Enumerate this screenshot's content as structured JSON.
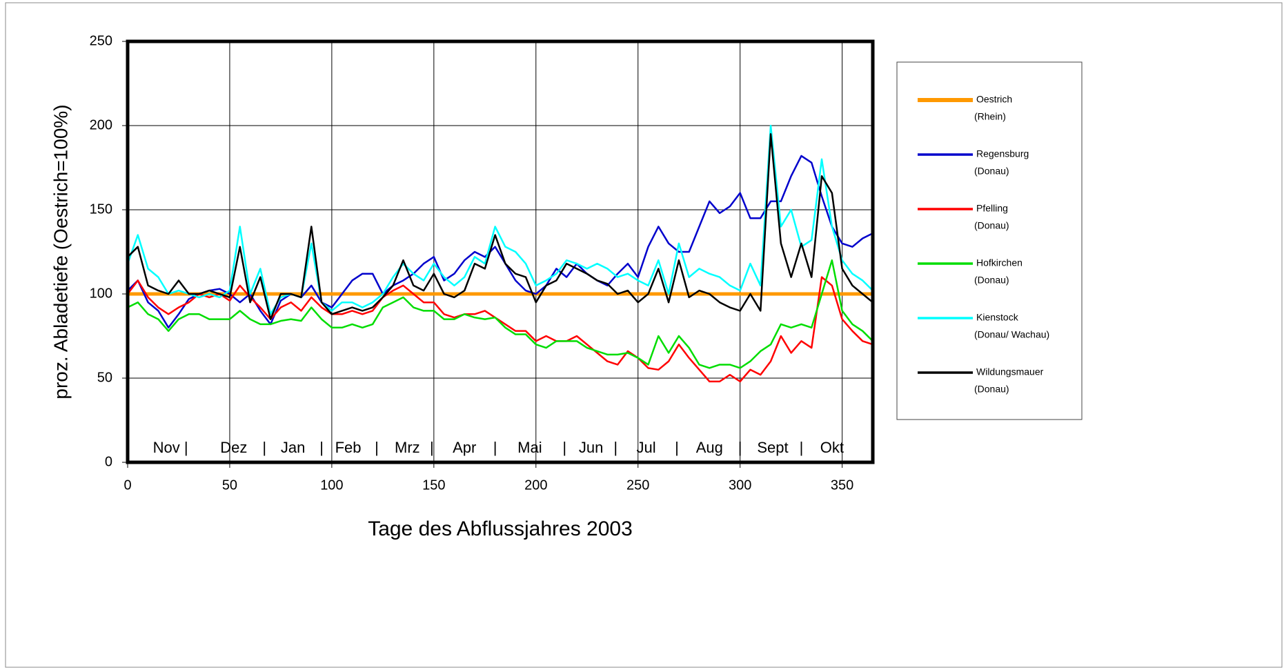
{
  "chart_data": {
    "type": "line",
    "x_label": "Tage des Abflussjahres 2003",
    "y_label": "proz. Abladetiefe (Oestrich=100%)",
    "xlim": [
      0,
      365
    ],
    "ylim": [
      0,
      250
    ],
    "xticks": [
      0,
      50,
      100,
      150,
      200,
      250,
      300,
      350
    ],
    "yticks": [
      0,
      50,
      100,
      150,
      200,
      250
    ],
    "grid": true,
    "legend": "right",
    "x": [
      0,
      5,
      10,
      15,
      20,
      25,
      30,
      35,
      40,
      45,
      50,
      55,
      60,
      65,
      70,
      75,
      80,
      85,
      90,
      95,
      100,
      105,
      110,
      115,
      120,
      125,
      130,
      135,
      140,
      145,
      150,
      155,
      160,
      165,
      170,
      175,
      180,
      185,
      190,
      195,
      200,
      205,
      210,
      215,
      220,
      225,
      230,
      235,
      240,
      245,
      250,
      255,
      260,
      265,
      270,
      275,
      280,
      285,
      290,
      295,
      300,
      305,
      310,
      315,
      320,
      325,
      330,
      335,
      340,
      345,
      350,
      355,
      360,
      365
    ],
    "series": [
      {
        "name": "Oestrich",
        "sublabel": "(Rhein)",
        "color": "#ff9900",
        "width": 5,
        "values": [
          100,
          100,
          100,
          100,
          100,
          100,
          100,
          100,
          100,
          100,
          100,
          100,
          100,
          100,
          100,
          100,
          100,
          100,
          100,
          100,
          100,
          100,
          100,
          100,
          100,
          100,
          100,
          100,
          100,
          100,
          100,
          100,
          100,
          100,
          100,
          100,
          100,
          100,
          100,
          100,
          100,
          100,
          100,
          100,
          100,
          100,
          100,
          100,
          100,
          100,
          100,
          100,
          100,
          100,
          100,
          100,
          100,
          100,
          100,
          100,
          100,
          100,
          100,
          100,
          100,
          100,
          100,
          100,
          100,
          100,
          100,
          100,
          100,
          100
        ]
      },
      {
        "name": "Regensburg",
        "sublabel": "(Donau)",
        "color": "#0000cc",
        "width": 2.5,
        "values": [
          102,
          108,
          95,
          90,
          80,
          88,
          97,
          100,
          102,
          103,
          100,
          95,
          100,
          90,
          82,
          96,
          100,
          98,
          105,
          95,
          92,
          100,
          108,
          112,
          112,
          100,
          105,
          108,
          112,
          118,
          122,
          108,
          112,
          120,
          125,
          122,
          128,
          118,
          108,
          102,
          100,
          105,
          115,
          110,
          118,
          112,
          108,
          105,
          112,
          118,
          110,
          128,
          140,
          130,
          125,
          125,
          140,
          155,
          148,
          152,
          160,
          145,
          145,
          155,
          155,
          170,
          182,
          178,
          158,
          140,
          130,
          128,
          133,
          136
        ]
      },
      {
        "name": "Pfelling",
        "sublabel": "(Donau)",
        "color": "#ff0000",
        "width": 2.5,
        "values": [
          100,
          108,
          98,
          92,
          88,
          92,
          95,
          100,
          98,
          100,
          96,
          105,
          98,
          92,
          85,
          92,
          95,
          90,
          98,
          92,
          88,
          88,
          90,
          88,
          90,
          98,
          102,
          105,
          100,
          95,
          95,
          88,
          86,
          88,
          88,
          90,
          86,
          82,
          78,
          78,
          72,
          75,
          72,
          72,
          75,
          70,
          65,
          60,
          58,
          66,
          62,
          56,
          55,
          60,
          70,
          62,
          55,
          48,
          48,
          52,
          48,
          55,
          52,
          60,
          75,
          65,
          72,
          68,
          110,
          105,
          85,
          78,
          72,
          70
        ]
      },
      {
        "name": "Hofkirchen",
        "sublabel": "(Donau)",
        "color": "#00dd00",
        "width": 2.5,
        "values": [
          92,
          95,
          88,
          85,
          78,
          85,
          88,
          88,
          85,
          85,
          85,
          90,
          85,
          82,
          82,
          84,
          85,
          84,
          92,
          85,
          80,
          80,
          82,
          80,
          82,
          92,
          95,
          98,
          92,
          90,
          90,
          85,
          85,
          88,
          86,
          85,
          86,
          80,
          76,
          76,
          70,
          68,
          72,
          72,
          72,
          68,
          66,
          64,
          64,
          65,
          62,
          58,
          75,
          65,
          75,
          68,
          58,
          56,
          58,
          58,
          56,
          60,
          66,
          70,
          82,
          80,
          82,
          80,
          100,
          120,
          90,
          82,
          78,
          72
        ]
      },
      {
        "name": "Kienstock",
        "sublabel": "(Donau/ Wachau)",
        "color": "#00ffff",
        "width": 2.5,
        "values": [
          118,
          135,
          115,
          110,
          100,
          102,
          100,
          98,
          100,
          98,
          102,
          140,
          100,
          115,
          88,
          98,
          100,
          98,
          130,
          95,
          90,
          95,
          95,
          92,
          95,
          100,
          110,
          118,
          112,
          108,
          118,
          110,
          105,
          110,
          122,
          118,
          140,
          128,
          125,
          118,
          105,
          108,
          112,
          120,
          118,
          115,
          118,
          115,
          110,
          112,
          108,
          105,
          120,
          100,
          130,
          110,
          115,
          112,
          110,
          105,
          102,
          118,
          105,
          200,
          140,
          150,
          128,
          132,
          180,
          140,
          120,
          112,
          108,
          102
        ]
      },
      {
        "name": "Wildungsmauer",
        "sublabel": "(Donau)",
        "color": "#000000",
        "width": 2.5,
        "values": [
          122,
          128,
          105,
          102,
          100,
          108,
          100,
          100,
          102,
          100,
          98,
          128,
          95,
          110,
          85,
          100,
          100,
          98,
          140,
          95,
          88,
          90,
          92,
          90,
          92,
          98,
          105,
          120,
          105,
          102,
          112,
          100,
          98,
          102,
          118,
          115,
          135,
          118,
          112,
          110,
          95,
          105,
          108,
          118,
          115,
          112,
          108,
          106,
          100,
          102,
          95,
          100,
          115,
          95,
          120,
          98,
          102,
          100,
          95,
          92,
          90,
          100,
          90,
          195,
          130,
          110,
          130,
          110,
          170,
          160,
          115,
          105,
          100,
          95
        ]
      }
    ],
    "annotations": [
      {
        "text": "Nov |",
        "x": 21
      },
      {
        "text": "Dez",
        "x": 52
      },
      {
        "text": "|",
        "x": 67
      },
      {
        "text": "Jan",
        "x": 81
      },
      {
        "text": "|",
        "x": 95
      },
      {
        "text": "Feb",
        "x": 108
      },
      {
        "text": "|",
        "x": 122
      },
      {
        "text": "Mrz",
        "x": 137
      },
      {
        "text": "|",
        "x": 149
      },
      {
        "text": "Apr",
        "x": 165
      },
      {
        "text": "|",
        "x": 180
      },
      {
        "text": "Mai",
        "x": 197
      },
      {
        "text": "|",
        "x": 214
      },
      {
        "text": "Jun",
        "x": 227
      },
      {
        "text": "|",
        "x": 239
      },
      {
        "text": "Jul",
        "x": 254
      },
      {
        "text": "|",
        "x": 269
      },
      {
        "text": "Aug",
        "x": 285
      },
      {
        "text": "|",
        "x": 300
      },
      {
        "text": "Sept",
        "x": 316
      },
      {
        "text": "|",
        "x": 330
      },
      {
        "text": "Okt",
        "x": 345
      }
    ]
  }
}
